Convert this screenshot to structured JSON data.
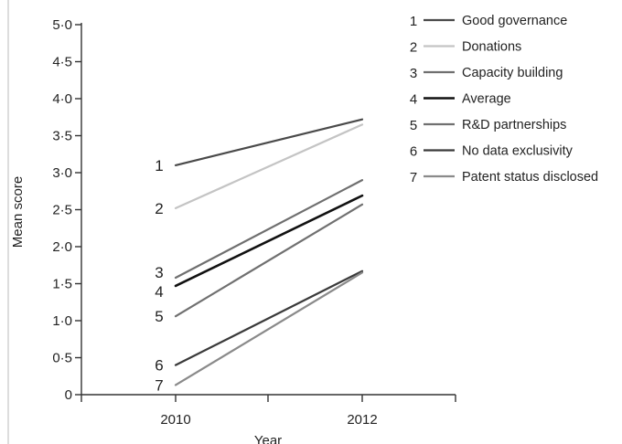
{
  "chart_data": {
    "type": "line",
    "x": [
      "2010",
      "2012"
    ],
    "xlabel": "Year",
    "ylabel": "Mean score",
    "ylim": [
      0,
      5
    ],
    "yticks": [
      "0",
      "0·5",
      "1·0",
      "1·5",
      "2·0",
      "2·5",
      "3·0",
      "3·5",
      "4·0",
      "4·5",
      "5·0"
    ],
    "grid": false,
    "legend_position": "top-right",
    "series": [
      {
        "number": "1",
        "name": "Good governance",
        "values": [
          3.1,
          3.72
        ],
        "color": "#4a4a4a"
      },
      {
        "number": "2",
        "name": "Donations",
        "values": [
          2.52,
          3.65
        ],
        "color": "#c4c4c4"
      },
      {
        "number": "3",
        "name": "Capacity building",
        "values": [
          1.58,
          2.9
        ],
        "color": "#6f6f6f"
      },
      {
        "number": "4",
        "name": "Average",
        "values": [
          1.47,
          2.69
        ],
        "color": "#111111"
      },
      {
        "number": "5",
        "name": "R&D partnerships",
        "values": [
          1.06,
          2.57
        ],
        "color": "#707070"
      },
      {
        "number": "6",
        "name": "No data exclusivity",
        "values": [
          0.4,
          1.67
        ],
        "color": "#3a3a3a"
      },
      {
        "number": "7",
        "name": "Patent status disclosed",
        "values": [
          0.13,
          1.65
        ],
        "color": "#8a8a8a"
      }
    ]
  }
}
